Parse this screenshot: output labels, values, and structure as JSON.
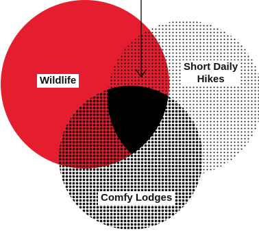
{
  "venn": {
    "sets": [
      {
        "id": "wildlife",
        "label": "Wildlife",
        "color": "#e41e2e",
        "fill": "solid"
      },
      {
        "id": "short-daily-hikes",
        "label_lines": [
          "Short Daily",
          "Hikes"
        ],
        "color": "#111111",
        "fill": "light-dots"
      },
      {
        "id": "comfy-lodges",
        "label": "Comfy Lodges",
        "color": "#111111",
        "fill": "dense-dots"
      }
    ],
    "intersection": {
      "sets": [
        "wildlife",
        "short-daily-hikes",
        "comfy-lodges"
      ],
      "color": "#000000"
    },
    "pointer": {
      "target": "intersection"
    }
  }
}
